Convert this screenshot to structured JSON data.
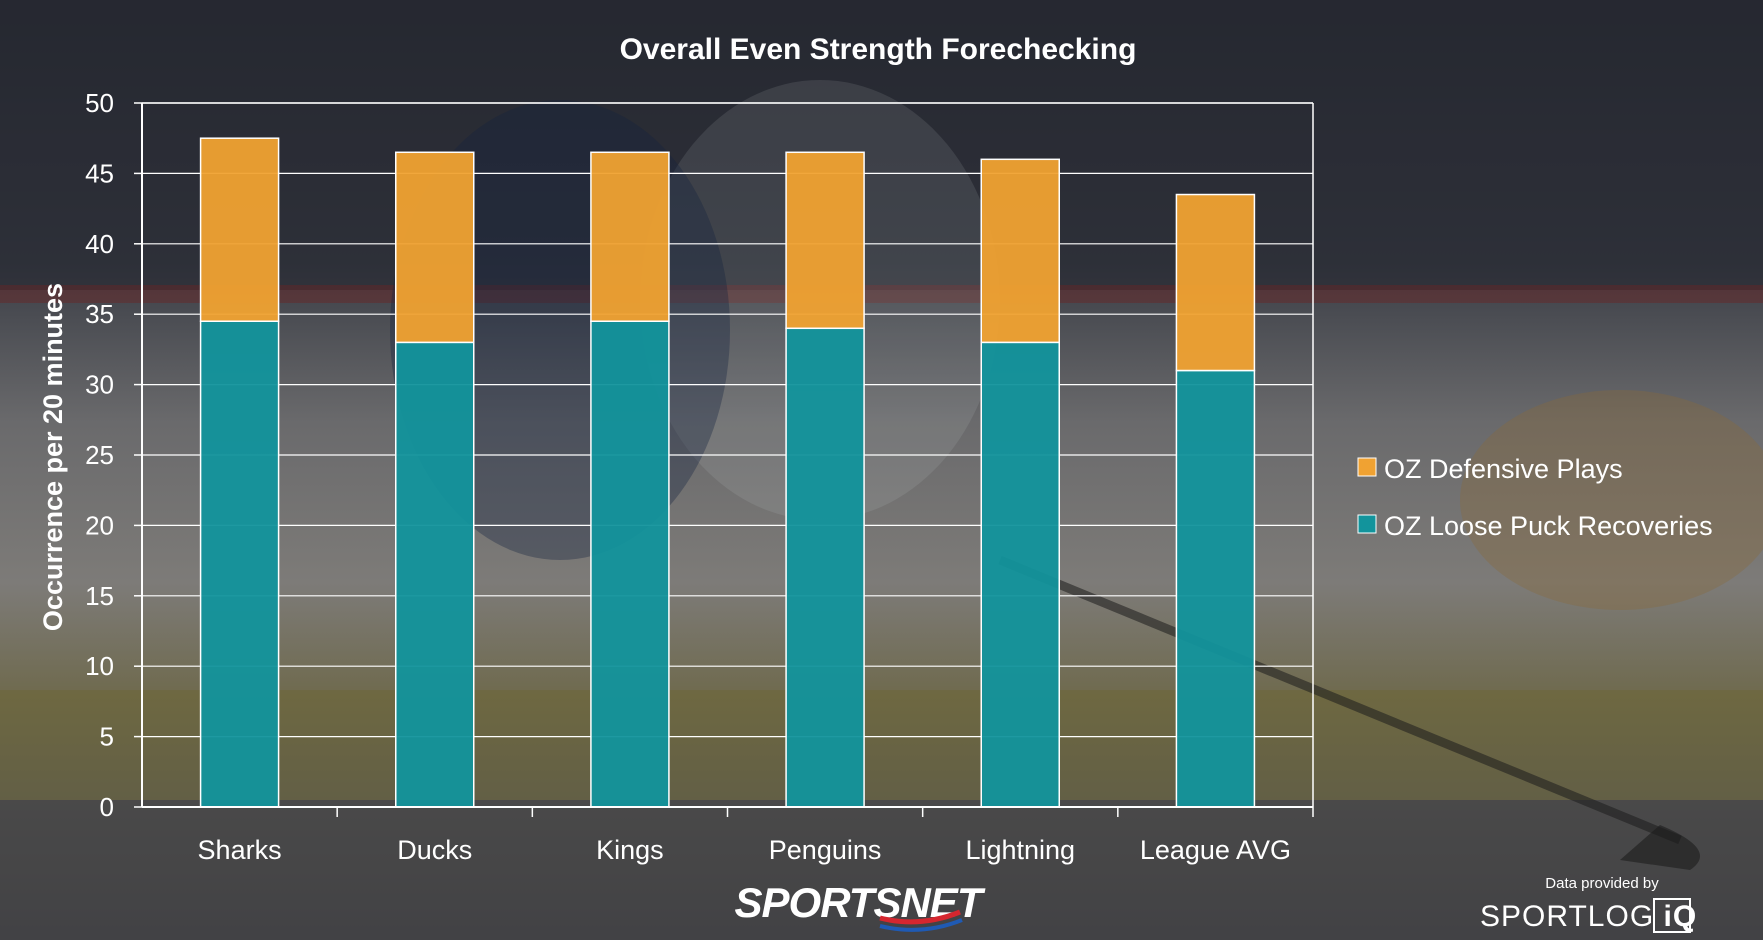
{
  "chart_data": {
    "type": "bar",
    "stacked": true,
    "title": "Overall Even Strength Forechecking",
    "xlabel": "",
    "ylabel": "Occurrence per 20 minutes",
    "ylim": [
      0,
      50
    ],
    "yticks": [
      0,
      5,
      10,
      15,
      20,
      25,
      30,
      35,
      40,
      45,
      50
    ],
    "grid": true,
    "legend_position": "right",
    "categories": [
      "Sharks",
      "Ducks",
      "Kings",
      "Penguins",
      "Lightning",
      "League AVG"
    ],
    "series": [
      {
        "name": "OZ Loose Puck Recoveries",
        "color": "#12949c",
        "values": [
          34.5,
          33,
          34.5,
          34,
          33,
          31
        ]
      },
      {
        "name": "OZ Defensive Plays",
        "color": "#f0a232",
        "values": [
          13,
          13.5,
          12,
          12.5,
          13,
          12.5
        ]
      }
    ],
    "legend_order": [
      "OZ Defensive Plays",
      "OZ Loose Puck Recoveries"
    ]
  },
  "footer": {
    "brand_left": "SPORTSNET",
    "credit_prefix": "Data provided by",
    "brand_right_a": "SPORTLOG",
    "brand_right_b": "iQ"
  },
  "colors": {
    "axis": "#ffffff",
    "brand_accent": "#1f5ab4",
    "brand_red": "#d5262f"
  }
}
